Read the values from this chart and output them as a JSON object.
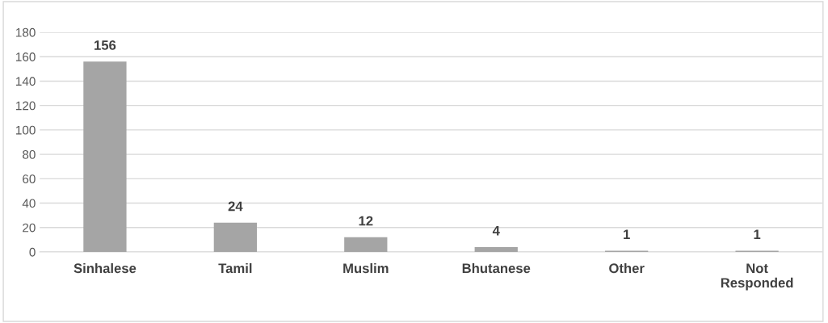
{
  "chart_data": {
    "type": "bar",
    "categories": [
      "Sinhalese",
      "Tamil",
      "Muslim",
      "Bhutanese",
      "Other",
      "Not Responded"
    ],
    "values": [
      156,
      24,
      12,
      4,
      1,
      1
    ],
    "color": "#a5a5a5",
    "ylim": [
      0,
      180
    ],
    "yticks": [
      0,
      20,
      40,
      60,
      80,
      100,
      120,
      140,
      160,
      180
    ],
    "grid": "y",
    "data_labels": true
  }
}
